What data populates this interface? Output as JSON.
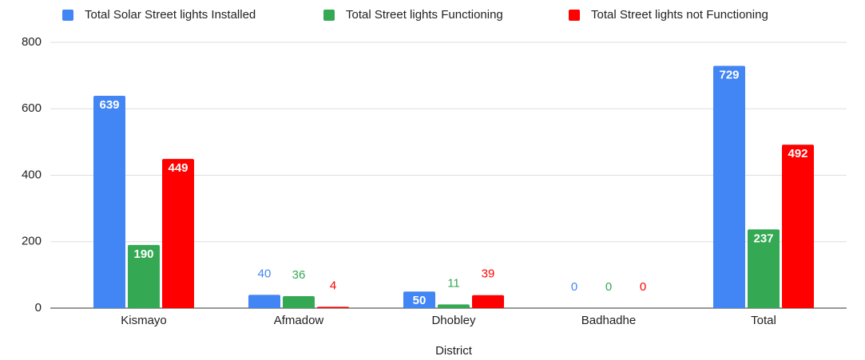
{
  "chart_data": {
    "type": "bar",
    "x_label": "District",
    "categories": [
      "Kismayo",
      "Afmadow",
      "Dhobley",
      "Badhadhe",
      "Total"
    ],
    "series": [
      {
        "name": "Total Solar Street lights Installed",
        "color": "#4285f4",
        "values": [
          639,
          40,
          50,
          0,
          729
        ]
      },
      {
        "name": "Total Street lights Functioning",
        "color": "#34a853",
        "values": [
          190,
          36,
          11,
          0,
          237
        ]
      },
      {
        "name": "Total Street lights not Functioning",
        "color": "#ff0000",
        "values": [
          449,
          4,
          39,
          0,
          492
        ]
      }
    ],
    "ylim": [
      0,
      800
    ],
    "yticks": [
      0,
      200,
      400,
      600,
      800
    ],
    "grid": true,
    "legend": "top"
  }
}
